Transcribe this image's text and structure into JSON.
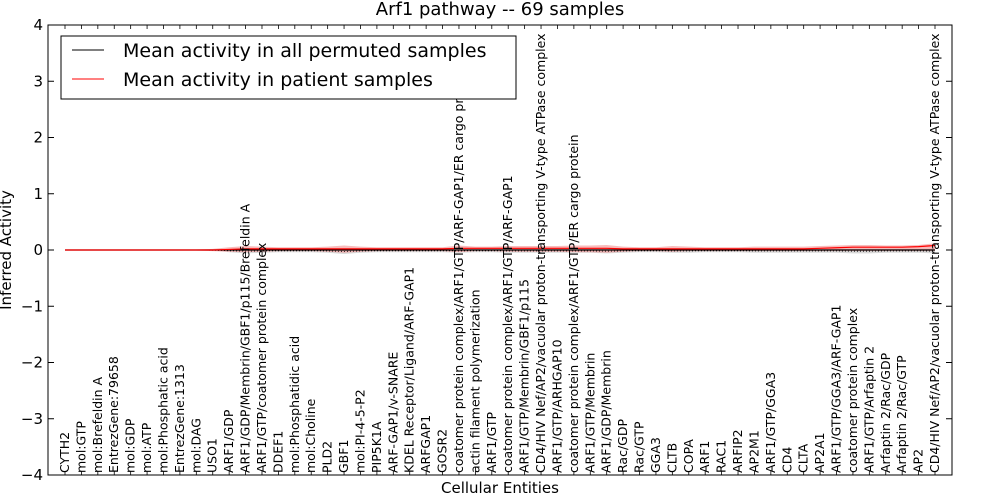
{
  "chart_data": {
    "type": "line",
    "title": "Arf1 pathway -- 69 samples",
    "xlabel": "Cellular Entities",
    "ylabel": "Inferred Activity",
    "ylim": [
      -4,
      4
    ],
    "yticks": [
      -4,
      -3,
      -2,
      -1,
      0,
      1,
      2,
      3,
      4
    ],
    "grid": false,
    "legend_position": "top-left",
    "colors": {
      "permuted": "#000000",
      "patient": "#ff0000",
      "patient_band": "#f4a0a0",
      "permuted_band": "#c8c8c8"
    },
    "categories": [
      "CYTH2",
      "mol:GTP",
      "mol:Brefeldin A",
      "EntrezGene:79658",
      "mol:GDP",
      "mol:ATP",
      "mol:Phosphatic acid",
      "EntrezGene:1313",
      "mol:DAG",
      "USO1",
      "ARF1/GDP",
      "ARF1/GDP/Membrin/GBF1/p115/Brefeldin A",
      "ARF1/GTP/coatomer protein complex",
      "DDEF1",
      "mol:Phosphatidic acid",
      "mol:Choline",
      "PLD2",
      "GBF1",
      "mol:PI-4-5-P2",
      "PIP5K1A",
      "ARF-GAP1/v-SNARE",
      "KDEL Receptor/Ligand/ARF-GAP1",
      "ARFGAP1",
      "GOSR2",
      "coatomer protein complex/ARF1/GTP/ARF-GAP1/ER cargo protein",
      "actin filament polymerization",
      "ARF1/GTP",
      "coatomer protein complex/ARF1/GTP/ARF-GAP1",
      "ARF1/GTP/Membrin/GBF1/p115",
      "CD4/HIV Nef/AP2/vacuolar proton-transporting V-type ATPase complex",
      "ARF1/GTP/ARHGAP10",
      "coatomer protein complex/ARF1/GTP/ER cargo protein",
      "ARF1/GTP/Membrin",
      "ARF1/GDP/Membrin",
      "Rac/GDP",
      "Rac/GTP",
      "GGA3",
      "CLTB",
      "COPA",
      "ARF1",
      "RAC1",
      "ARFIP2",
      "AP2M1",
      "ARF1/GTP/GGA3",
      "CD4",
      "CLTA",
      "AP2A1",
      "ARF1/GTP/GGA3/ARF-GAP1",
      "coatomer protein complex",
      "ARF1/GTP/Arfaptin 2",
      "Arfaptin 2/Rac/GDP",
      "Arfaptin 2/Rac/GTP",
      "AP2",
      "CD4/HIV Nef/AP2/vacuolar proton-transporting V-type ATPase complex"
    ],
    "series": [
      {
        "name": "Mean activity in all permuted samples",
        "values": [
          0,
          0,
          0,
          0,
          0,
          0,
          0,
          0,
          0,
          0,
          0,
          0,
          0,
          0,
          0,
          0,
          0,
          0,
          0,
          0,
          0,
          0,
          0,
          0,
          0,
          0,
          0,
          0,
          0,
          0,
          0,
          0,
          0,
          0,
          0,
          0,
          0,
          0,
          0,
          0,
          0,
          0,
          0,
          0,
          0,
          0,
          0,
          0,
          0,
          0,
          0,
          0,
          0,
          0
        ]
      },
      {
        "name": "Mean activity in patient samples",
        "values": [
          0,
          0,
          0,
          0,
          0,
          0,
          0,
          0,
          0,
          0,
          0.01,
          0.02,
          0.02,
          0.02,
          0.02,
          0.02,
          0.02,
          0.02,
          0.02,
          0.02,
          0.02,
          0.02,
          0.02,
          0.02,
          0.03,
          0.03,
          0.03,
          0.03,
          0.03,
          0.03,
          0.03,
          0.03,
          0.03,
          0.03,
          0.02,
          0.02,
          0.02,
          0.02,
          0.02,
          0.02,
          0.02,
          0.02,
          0.02,
          0.02,
          0.02,
          0.02,
          0.03,
          0.04,
          0.05,
          0.05,
          0.05,
          0.05,
          0.06,
          0.08
        ],
        "upper": [
          0,
          0,
          0,
          0,
          0,
          0,
          0,
          0,
          0.01,
          0.02,
          0.05,
          0.07,
          0.06,
          0.05,
          0.05,
          0.05,
          0.06,
          0.08,
          0.06,
          0.05,
          0.05,
          0.05,
          0.05,
          0.05,
          0.08,
          0.06,
          0.06,
          0.07,
          0.07,
          0.07,
          0.07,
          0.08,
          0.08,
          0.09,
          0.06,
          0.05,
          0.05,
          0.07,
          0.06,
          0.05,
          0.05,
          0.05,
          0.06,
          0.06,
          0.06,
          0.06,
          0.07,
          0.08,
          0.09,
          0.09,
          0.08,
          0.08,
          0.09,
          0.12
        ],
        "lower": [
          0,
          0,
          0,
          0,
          0,
          0,
          0,
          0,
          -0.01,
          -0.02,
          -0.03,
          -0.04,
          -0.03,
          -0.02,
          -0.02,
          -0.02,
          -0.03,
          -0.05,
          -0.03,
          -0.02,
          -0.02,
          -0.02,
          -0.02,
          -0.02,
          -0.04,
          -0.02,
          -0.02,
          -0.03,
          -0.03,
          -0.03,
          -0.03,
          -0.04,
          -0.04,
          -0.05,
          -0.03,
          -0.02,
          -0.02,
          -0.03,
          -0.02,
          -0.02,
          -0.02,
          -0.02,
          -0.02,
          -0.02,
          -0.02,
          -0.02,
          -0.02,
          -0.02,
          -0.02,
          -0.02,
          -0.02,
          -0.02,
          -0.02,
          -0.02
        ]
      }
    ],
    "permuted_band": {
      "upper": [
        0,
        0,
        0,
        0,
        0,
        0,
        0,
        0,
        0,
        0.01,
        0.02,
        0.02,
        0.02,
        0.02,
        0.02,
        0.02,
        0.02,
        0.02,
        0.02,
        0.02,
        0.02,
        0.02,
        0.02,
        0.02,
        0.02,
        0.02,
        0.02,
        0.02,
        0.02,
        0.02,
        0.02,
        0.02,
        0.02,
        0.02,
        0.02,
        0.02,
        0.02,
        0.02,
        0.02,
        0.02,
        0.02,
        0.02,
        0.02,
        0.02,
        0.02,
        0.02,
        0.02,
        0.02,
        0.02,
        0.02,
        0.02,
        0.02,
        0.02,
        0.02
      ],
      "lower": [
        0,
        0,
        0,
        0,
        0,
        0,
        0,
        0,
        0,
        -0.01,
        -0.04,
        -0.06,
        -0.05,
        -0.04,
        -0.04,
        -0.04,
        -0.05,
        -0.07,
        -0.05,
        -0.04,
        -0.04,
        -0.04,
        -0.04,
        -0.04,
        -0.05,
        -0.04,
        -0.04,
        -0.05,
        -0.05,
        -0.05,
        -0.05,
        -0.05,
        -0.05,
        -0.06,
        -0.05,
        -0.04,
        -0.04,
        -0.05,
        -0.05,
        -0.04,
        -0.04,
        -0.04,
        -0.05,
        -0.05,
        -0.05,
        -0.05,
        -0.05,
        -0.05,
        -0.06,
        -0.06,
        -0.05,
        -0.05,
        -0.05,
        -0.06
      ]
    }
  }
}
